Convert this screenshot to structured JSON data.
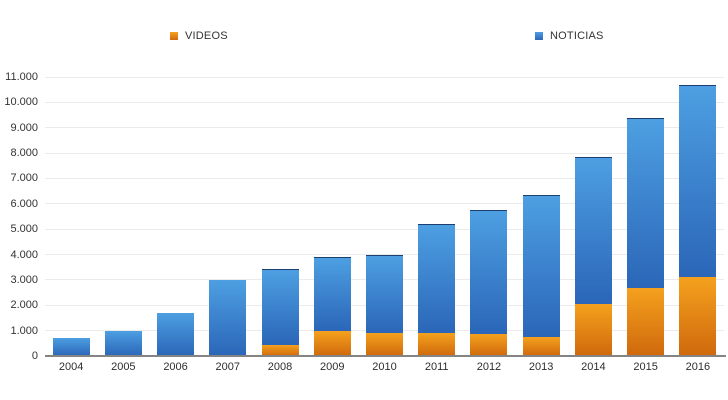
{
  "page": {
    "background": "#ffffff"
  },
  "chart_data": {
    "type": "bar",
    "stacked": true,
    "title": "",
    "xlabel": "",
    "ylabel": "",
    "grid": true,
    "legend_position": "top",
    "categories": [
      "2004",
      "2005",
      "2006",
      "2007",
      "2008",
      "2009",
      "2010",
      "2011",
      "2012",
      "2013",
      "2014",
      "2015",
      "2016"
    ],
    "series": [
      {
        "name": "VIDEOS",
        "color": "#e8820f",
        "gradient_top": "#f5a11e",
        "gradient_bottom": "#cf690c",
        "values": [
          0,
          0,
          0,
          0,
          450,
          1000,
          900,
          900,
          850,
          750,
          2050,
          2700,
          3100
        ]
      },
      {
        "name": "NOTICIAS",
        "color": "#3e8ed9",
        "gradient_top": "#4d9fe2",
        "gradient_bottom": "#2b66b8",
        "values": [
          700,
          1000,
          1700,
          3000,
          3000,
          2900,
          3100,
          4300,
          4900,
          5600,
          5800,
          6700,
          7600
        ]
      }
    ],
    "totals": [
      700,
      1000,
      1700,
      3000,
      3450,
      3900,
      4000,
      5200,
      5750,
      6350,
      7850,
      9400,
      10700
    ],
    "ylim": [
      0,
      11000
    ],
    "ytick_step": 1000,
    "ytick_labels": [
      "0",
      "1.000",
      "2.000",
      "3.000",
      "4.000",
      "5.000",
      "6.000",
      "7.000",
      "8.000",
      "9.000",
      "10.000",
      "11.000"
    ],
    "axis_colors": {
      "gridline": "#ebebeb",
      "baseline": "#848484",
      "tick_text": "#333333"
    }
  }
}
